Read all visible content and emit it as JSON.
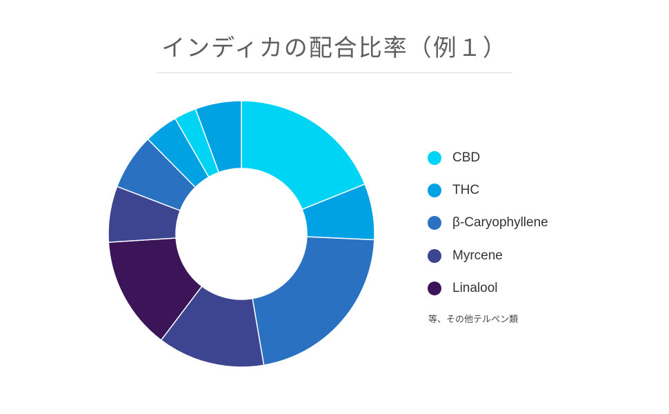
{
  "chart_data": {
    "type": "donut",
    "title": "インディカの配合比率（例１）",
    "legend": {
      "placement": "right",
      "entries": [
        {
          "name": "CBD",
          "color": "#00d4f5"
        },
        {
          "name": "THC",
          "color": "#00a2e3"
        },
        {
          "name": "β-Caryophyllene",
          "color": "#2a72c1"
        },
        {
          "name": "Myrcene",
          "color": "#3d4591"
        },
        {
          "name": "Linalool",
          "color": "#3c1559"
        }
      ]
    },
    "note": "等、その他テルペン類",
    "slices": [
      {
        "color": "#00d4f5",
        "value": 18.9
      },
      {
        "color": "#00a2e3",
        "value": 6.8
      },
      {
        "color": "#2a72c1",
        "value": 21.6
      },
      {
        "color": "#3d4591",
        "value": 13.0
      },
      {
        "color": "#3c1559",
        "value": 13.7
      },
      {
        "color": "#3d4591",
        "value": 6.8
      },
      {
        "color": "#2a72c1",
        "value": 6.8
      },
      {
        "color": "#00a2e3",
        "value": 4.1
      },
      {
        "color": "#00d4f5",
        "value": 2.7
      },
      {
        "color": "#00a2e3",
        "value": 5.6
      }
    ]
  }
}
